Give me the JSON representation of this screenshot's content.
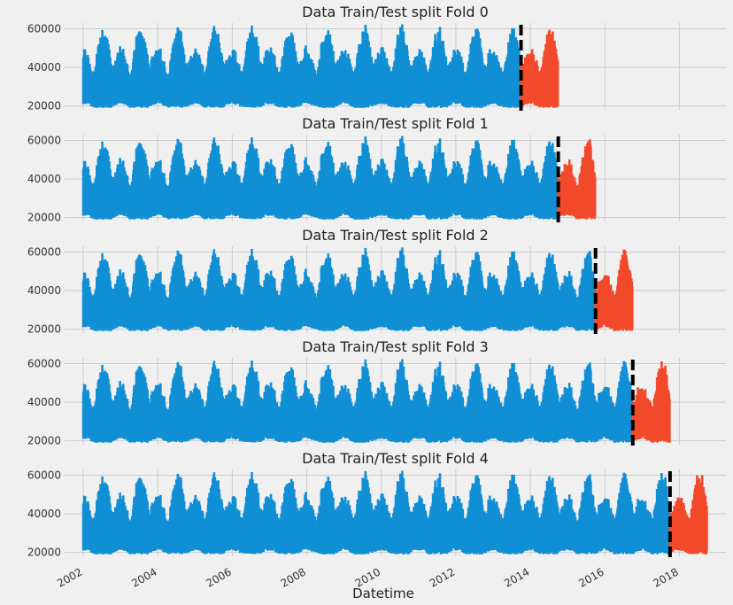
{
  "chart_data": [
    {
      "type": "line",
      "title": "Data Train/Test split Fold 0",
      "split": 2013.75,
      "test_end": 2014.75,
      "yticks": [
        20000,
        40000,
        60000
      ],
      "ylim": [
        18000,
        63000
      ]
    },
    {
      "type": "line",
      "title": "Data Train/Test split Fold 1",
      "split": 2014.75,
      "test_end": 2015.75,
      "yticks": [
        20000,
        40000,
        60000
      ],
      "ylim": [
        18000,
        63000
      ]
    },
    {
      "type": "line",
      "title": "Data Train/Test split Fold 2",
      "split": 2015.75,
      "test_end": 2016.75,
      "yticks": [
        20000,
        40000,
        60000
      ],
      "ylim": [
        18000,
        63000
      ]
    },
    {
      "type": "line",
      "title": "Data Train/Test split Fold 3",
      "split": 2016.75,
      "test_end": 2017.75,
      "yticks": [
        20000,
        40000,
        60000
      ],
      "ylim": [
        18000,
        63000
      ]
    },
    {
      "type": "line",
      "title": "Data Train/Test split Fold 4",
      "split": 2017.75,
      "test_end": 2018.75,
      "yticks": [
        20000,
        40000,
        60000
      ],
      "ylim": [
        18000,
        63000
      ]
    }
  ],
  "shared": {
    "xlabel": "Datetime",
    "xticks": [
      "2002",
      "2004",
      "2006",
      "2008",
      "2010",
      "2012",
      "2014",
      "2016",
      "2018"
    ],
    "xlim": [
      2001.5,
      2019.25
    ],
    "train_data_start": 2002.0,
    "colors": {
      "train": "#118fd4",
      "test": "#f2492a",
      "split_line": "#000000",
      "grid": "#cbcbcb",
      "background": "#f0f0f0"
    }
  }
}
